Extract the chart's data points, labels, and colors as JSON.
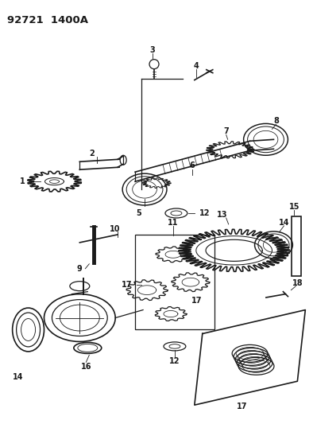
{
  "title": "92721  1400A",
  "bg_color": "#ffffff",
  "figsize": [
    3.94,
    5.33
  ],
  "dpi": 100,
  "line_color": "#1a1a1a",
  "label_fontsize": 7.0,
  "title_fontsize": 9.5
}
